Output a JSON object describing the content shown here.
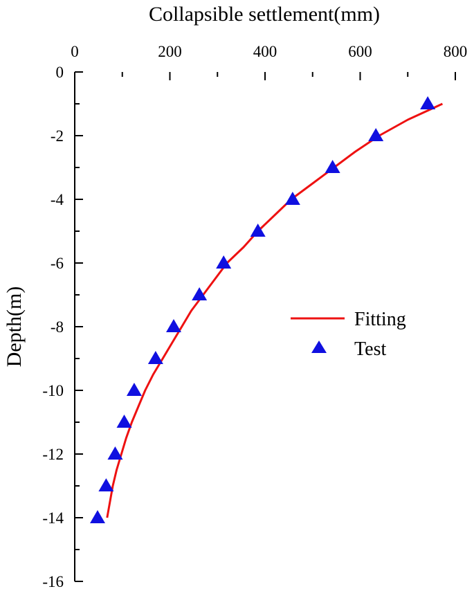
{
  "chart_data": {
    "type": "scatter",
    "title": "",
    "xlabel": "Collapsible settlement(mm)",
    "ylabel": "Depth(m)",
    "xlim": [
      0,
      800
    ],
    "ylim": [
      -16,
      0
    ],
    "x_axis_position": "top",
    "x_ticks": [
      0,
      200,
      400,
      600,
      800
    ],
    "y_ticks": [
      0,
      -2,
      -4,
      -6,
      -8,
      -10,
      -12,
      -14,
      -16
    ],
    "grid": false,
    "legend_position": "middle-right",
    "colors": {
      "fitting": "#ee1111",
      "test": "#1010e0"
    },
    "series": [
      {
        "name": "Fitting",
        "kind": "line",
        "points": [
          [
            773,
            -1
          ],
          [
            700,
            -1.5
          ],
          [
            640,
            -2
          ],
          [
            590,
            -2.5
          ],
          [
            545,
            -3
          ],
          [
            500,
            -3.5
          ],
          [
            455,
            -4
          ],
          [
            420,
            -4.5
          ],
          [
            385,
            -5
          ],
          [
            355,
            -5.5
          ],
          [
            320,
            -6
          ],
          [
            295,
            -6.5
          ],
          [
            270,
            -7
          ],
          [
            245,
            -7.5
          ],
          [
            225,
            -8
          ],
          [
            205,
            -8.5
          ],
          [
            185,
            -9
          ],
          [
            165,
            -9.5
          ],
          [
            148,
            -10
          ],
          [
            134,
            -10.5
          ],
          [
            120,
            -11
          ],
          [
            108,
            -11.5
          ],
          [
            98,
            -12
          ],
          [
            88,
            -12.5
          ],
          [
            80,
            -13
          ],
          [
            74,
            -13.5
          ],
          [
            68,
            -14
          ]
        ]
      },
      {
        "name": "Test",
        "kind": "scatter",
        "points": [
          [
            742,
            -1
          ],
          [
            633,
            -2
          ],
          [
            542,
            -3
          ],
          [
            458,
            -4
          ],
          [
            385,
            -5
          ],
          [
            313,
            -6
          ],
          [
            262,
            -7
          ],
          [
            208,
            -8
          ],
          [
            170,
            -9
          ],
          [
            125,
            -10
          ],
          [
            104,
            -11
          ],
          [
            85,
            -12
          ],
          [
            66,
            -13
          ],
          [
            48,
            -14
          ]
        ]
      }
    ]
  }
}
